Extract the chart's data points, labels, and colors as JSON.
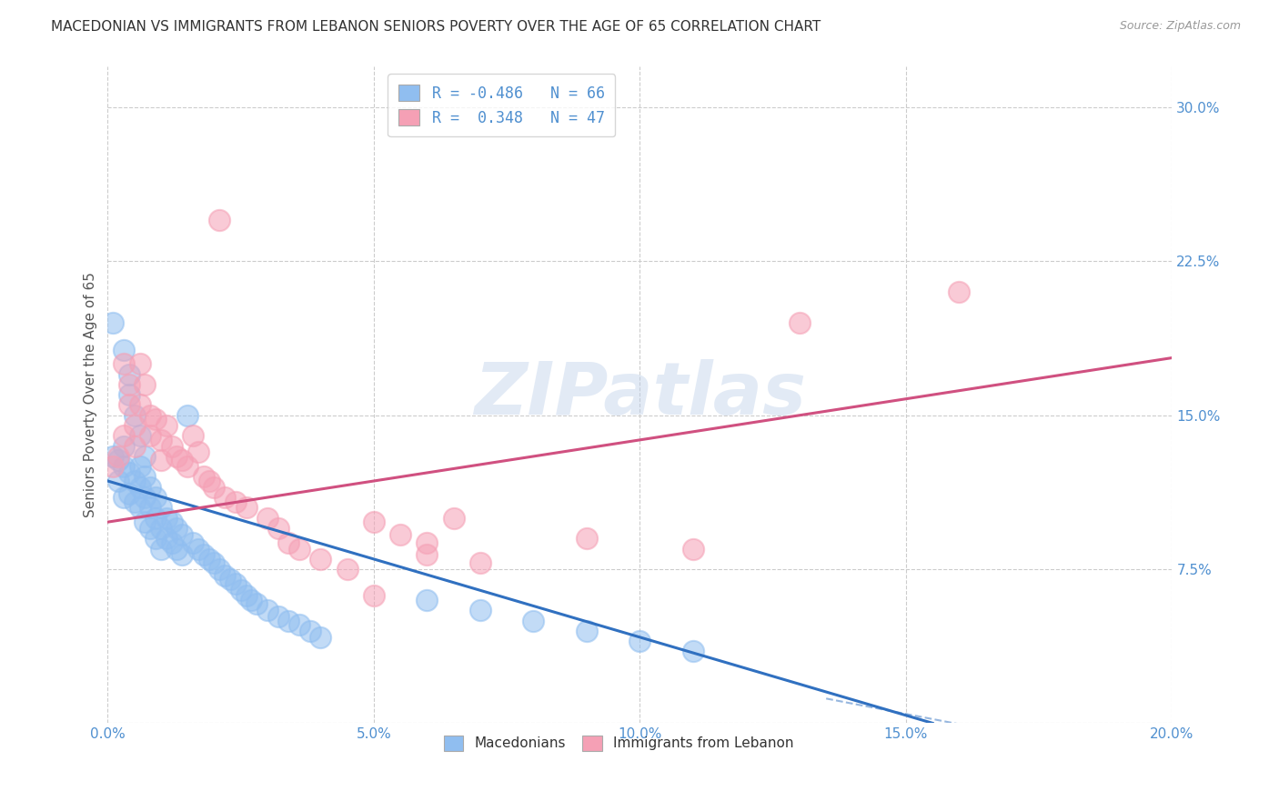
{
  "title": "MACEDONIAN VS IMMIGRANTS FROM LEBANON SENIORS POVERTY OVER THE AGE OF 65 CORRELATION CHART",
  "source": "Source: ZipAtlas.com",
  "ylabel": "Seniors Poverty Over the Age of 65",
  "ytick_values": [
    0.0,
    0.075,
    0.15,
    0.225,
    0.3
  ],
  "xtick_values": [
    0.0,
    0.05,
    0.1,
    0.15,
    0.2
  ],
  "xlim": [
    0.0,
    0.2
  ],
  "ylim": [
    0.0,
    0.32
  ],
  "background_color": "#ffffff",
  "grid_color": "#cccccc",
  "watermark": "ZIPatlas",
  "legend_r1_label": "R = -0.486   N = 66",
  "legend_r2_label": "R =  0.348   N = 47",
  "blue_color": "#90BEF0",
  "pink_color": "#F5A0B5",
  "blue_line_color": "#3070C0",
  "pink_line_color": "#D05080",
  "title_color": "#333333",
  "axis_color": "#5090D0",
  "blue_scatter": [
    [
      0.001,
      0.13
    ],
    [
      0.002,
      0.128
    ],
    [
      0.002,
      0.118
    ],
    [
      0.003,
      0.135
    ],
    [
      0.003,
      0.125
    ],
    [
      0.003,
      0.11
    ],
    [
      0.004,
      0.122
    ],
    [
      0.004,
      0.112
    ],
    [
      0.005,
      0.118
    ],
    [
      0.005,
      0.108
    ],
    [
      0.006,
      0.125
    ],
    [
      0.006,
      0.115
    ],
    [
      0.006,
      0.105
    ],
    [
      0.007,
      0.12
    ],
    [
      0.007,
      0.11
    ],
    [
      0.007,
      0.098
    ],
    [
      0.008,
      0.115
    ],
    [
      0.008,
      0.105
    ],
    [
      0.008,
      0.095
    ],
    [
      0.009,
      0.11
    ],
    [
      0.009,
      0.1
    ],
    [
      0.009,
      0.09
    ],
    [
      0.01,
      0.105
    ],
    [
      0.01,
      0.095
    ],
    [
      0.01,
      0.085
    ],
    [
      0.011,
      0.1
    ],
    [
      0.011,
      0.09
    ],
    [
      0.012,
      0.098
    ],
    [
      0.012,
      0.088
    ],
    [
      0.013,
      0.095
    ],
    [
      0.013,
      0.085
    ],
    [
      0.014,
      0.092
    ],
    [
      0.014,
      0.082
    ],
    [
      0.015,
      0.15
    ],
    [
      0.016,
      0.088
    ],
    [
      0.017,
      0.085
    ],
    [
      0.018,
      0.082
    ],
    [
      0.019,
      0.08
    ],
    [
      0.02,
      0.078
    ],
    [
      0.021,
      0.075
    ],
    [
      0.022,
      0.072
    ],
    [
      0.023,
      0.07
    ],
    [
      0.024,
      0.068
    ],
    [
      0.025,
      0.065
    ],
    [
      0.026,
      0.062
    ],
    [
      0.027,
      0.06
    ],
    [
      0.028,
      0.058
    ],
    [
      0.03,
      0.055
    ],
    [
      0.032,
      0.052
    ],
    [
      0.034,
      0.05
    ],
    [
      0.036,
      0.048
    ],
    [
      0.038,
      0.045
    ],
    [
      0.04,
      0.042
    ],
    [
      0.001,
      0.195
    ],
    [
      0.003,
      0.182
    ],
    [
      0.004,
      0.17
    ],
    [
      0.004,
      0.16
    ],
    [
      0.005,
      0.15
    ],
    [
      0.006,
      0.14
    ],
    [
      0.007,
      0.13
    ],
    [
      0.06,
      0.06
    ],
    [
      0.07,
      0.055
    ],
    [
      0.08,
      0.05
    ],
    [
      0.09,
      0.045
    ],
    [
      0.1,
      0.04
    ],
    [
      0.11,
      0.035
    ]
  ],
  "pink_scatter": [
    [
      0.001,
      0.125
    ],
    [
      0.002,
      0.13
    ],
    [
      0.003,
      0.14
    ],
    [
      0.003,
      0.175
    ],
    [
      0.004,
      0.165
    ],
    [
      0.004,
      0.155
    ],
    [
      0.005,
      0.145
    ],
    [
      0.005,
      0.135
    ],
    [
      0.006,
      0.175
    ],
    [
      0.006,
      0.155
    ],
    [
      0.007,
      0.165
    ],
    [
      0.008,
      0.15
    ],
    [
      0.008,
      0.14
    ],
    [
      0.009,
      0.148
    ],
    [
      0.01,
      0.138
    ],
    [
      0.01,
      0.128
    ],
    [
      0.011,
      0.145
    ],
    [
      0.012,
      0.135
    ],
    [
      0.013,
      0.13
    ],
    [
      0.014,
      0.128
    ],
    [
      0.015,
      0.125
    ],
    [
      0.016,
      0.14
    ],
    [
      0.017,
      0.132
    ],
    [
      0.018,
      0.12
    ],
    [
      0.019,
      0.118
    ],
    [
      0.02,
      0.115
    ],
    [
      0.021,
      0.245
    ],
    [
      0.022,
      0.11
    ],
    [
      0.024,
      0.108
    ],
    [
      0.026,
      0.105
    ],
    [
      0.03,
      0.1
    ],
    [
      0.032,
      0.095
    ],
    [
      0.034,
      0.088
    ],
    [
      0.036,
      0.085
    ],
    [
      0.04,
      0.08
    ],
    [
      0.045,
      0.075
    ],
    [
      0.05,
      0.098
    ],
    [
      0.055,
      0.092
    ],
    [
      0.06,
      0.088
    ],
    [
      0.06,
      0.082
    ],
    [
      0.065,
      0.1
    ],
    [
      0.09,
      0.09
    ],
    [
      0.11,
      0.085
    ],
    [
      0.13,
      0.195
    ],
    [
      0.16,
      0.21
    ],
    [
      0.05,
      0.062
    ],
    [
      0.07,
      0.078
    ]
  ],
  "blue_line_x": [
    0.0,
    0.155
  ],
  "blue_line_y": [
    0.118,
    0.0
  ],
  "pink_line_x": [
    0.0,
    0.2
  ],
  "pink_line_y": [
    0.098,
    0.178
  ]
}
